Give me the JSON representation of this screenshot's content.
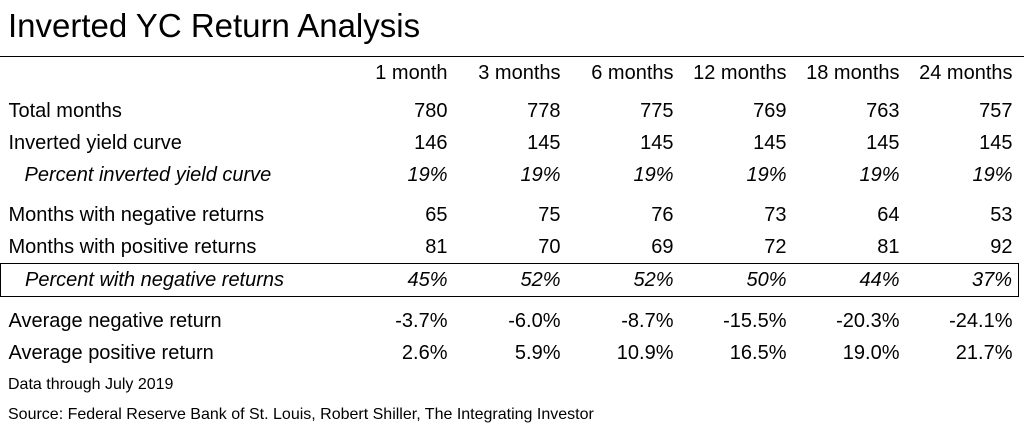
{
  "title": "Inverted YC Return Analysis",
  "chart_data": {
    "type": "table",
    "title": "Inverted YC Return Analysis",
    "columns": [
      "1 month",
      "3 months",
      "6 months",
      "12 months",
      "18 months",
      "24 months"
    ],
    "rows": [
      {
        "label": "Total months",
        "values": [
          "780",
          "778",
          "775",
          "769",
          "763",
          "757"
        ]
      },
      {
        "label": "Inverted yield curve",
        "values": [
          "146",
          "145",
          "145",
          "145",
          "145",
          "145"
        ]
      },
      {
        "label": "Percent inverted yield curve",
        "values": [
          "19%",
          "19%",
          "19%",
          "19%",
          "19%",
          "19%"
        ]
      },
      {
        "label": "Months with negative returns",
        "values": [
          "65",
          "75",
          "76",
          "73",
          "64",
          "53"
        ]
      },
      {
        "label": "Months with positive returns",
        "values": [
          "81",
          "70",
          "69",
          "72",
          "81",
          "92"
        ]
      },
      {
        "label": "Percent with negative returns",
        "values": [
          "45%",
          "52%",
          "52%",
          "50%",
          "44%",
          "37%"
        ]
      },
      {
        "label": "Average negative return",
        "values": [
          "-3.7%",
          "-6.0%",
          "-8.7%",
          "-15.5%",
          "-20.3%",
          "-24.1%"
        ]
      },
      {
        "label": "Average positive return",
        "values": [
          "2.6%",
          "5.9%",
          "10.9%",
          "16.5%",
          "19.0%",
          "21.7%"
        ]
      }
    ]
  },
  "footer": {
    "data_through": "Data through July 2019",
    "source": "Source: Federal Reserve Bank of St. Louis, Robert Shiller, The Integrating Investor"
  }
}
